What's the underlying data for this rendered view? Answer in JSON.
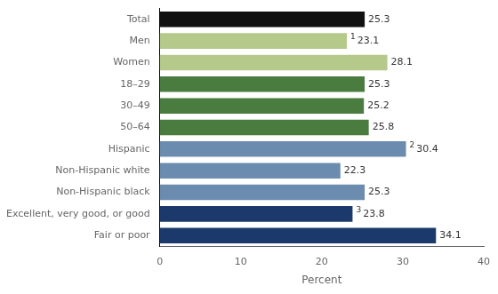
{
  "chart_data": {
    "type": "bar",
    "orientation": "horizontal",
    "categories": [
      "Fair or poor",
      "Excellent, very good, or good",
      "Non-Hispanic black",
      "Non-Hispanic white",
      "Hispanic",
      "50–64",
      "30–49",
      "18–29",
      "Women",
      "Men",
      "Total"
    ],
    "values": [
      34.1,
      23.8,
      25.3,
      22.3,
      30.4,
      25.8,
      25.2,
      25.3,
      28.1,
      23.1,
      25.3
    ],
    "colors": [
      "#1b3a6b",
      "#1b3a6b",
      "#6b8cae",
      "#6b8cae",
      "#6b8cae",
      "#4a7c3f",
      "#4a7c3f",
      "#4a7c3f",
      "#b5c98a",
      "#b5c98a",
      "#111111"
    ],
    "data_labels": true,
    "annotations": [
      {
        "category": "Excellent, very good, or good",
        "text": "3"
      },
      {
        "category": "Hispanic",
        "text": "2"
      },
      {
        "category": "Men",
        "text": "1"
      }
    ],
    "xlabel": "Percent",
    "xlim": [
      0,
      40
    ],
    "xticks": [
      0,
      10,
      20,
      30,
      40
    ],
    "grid": false
  }
}
